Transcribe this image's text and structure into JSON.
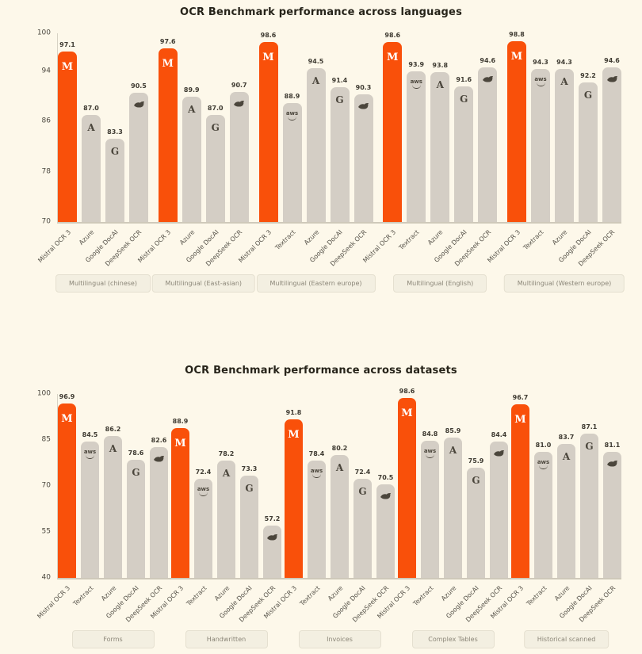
{
  "page": {
    "background_color": "#FDF8EA"
  },
  "colors": {
    "mistral_bar": "#F9500A",
    "default_bar": "#D4CEC5",
    "axis_line": "#cfc9ba",
    "value_label_text": "#3f3b32",
    "group_box_background": "#F3EFE1"
  },
  "icons": {
    "Mistral OCR 3": "mistral-logo-icon",
    "Textract": "aws-textract-icon",
    "Azure": "azure-icon",
    "Google DocAI": "google-docai-icon",
    "DeepSeek OCR": "deepseek-whale-icon"
  },
  "chart_data": [
    {
      "type": "bar",
      "title": "OCR Benchmark performance across languages",
      "xlabel": "",
      "ylabel": "",
      "ylim": [
        70,
        100
      ],
      "yticks": [
        100,
        94,
        86,
        78,
        70
      ],
      "grid": false,
      "legend_position": "none",
      "highlight_series": "Mistral OCR 3",
      "groups": [
        {
          "label": "Multilingual (chinese)",
          "bars": [
            {
              "vendor": "Mistral OCR 3",
              "value": 97.1,
              "label": "97.1"
            },
            {
              "vendor": "Azure",
              "value": 87.0,
              "label": "87.0"
            },
            {
              "vendor": "Google DocAI",
              "value": 83.3,
              "label": "83.3"
            },
            {
              "vendor": "DeepSeek OCR",
              "value": 90.5,
              "label": "90.5"
            }
          ]
        },
        {
          "label": "Multilingual (East-asian)",
          "bars": [
            {
              "vendor": "Mistral OCR 3",
              "value": 97.6,
              "label": "97.6"
            },
            {
              "vendor": "Azure",
              "value": 89.9,
              "label": "89.9"
            },
            {
              "vendor": "Google DocAI",
              "value": 87.0,
              "label": "87.0"
            },
            {
              "vendor": "DeepSeek OCR",
              "value": 90.7,
              "label": "90.7"
            }
          ]
        },
        {
          "label": "Multilingual (Eastern europe)",
          "bars": [
            {
              "vendor": "Mistral OCR 3",
              "value": 98.6,
              "label": "98.6"
            },
            {
              "vendor": "Textract",
              "value": 88.9,
              "label": "88.9"
            },
            {
              "vendor": "Azure",
              "value": 94.5,
              "label": "94.5"
            },
            {
              "vendor": "Google DocAI",
              "value": 91.4,
              "label": "91.4"
            },
            {
              "vendor": "DeepSeek OCR",
              "value": 90.3,
              "label": "90.3"
            }
          ]
        },
        {
          "label": "Multilingual (English)",
          "bars": [
            {
              "vendor": "Mistral OCR 3",
              "value": 98.6,
              "label": "98.6"
            },
            {
              "vendor": "Textract",
              "value": 93.9,
              "label": "93.9"
            },
            {
              "vendor": "Azure",
              "value": 93.8,
              "label": "93.8"
            },
            {
              "vendor": "Google DocAI",
              "value": 91.6,
              "label": "91.6"
            },
            {
              "vendor": "DeepSeek OCR",
              "value": 94.6,
              "label": "94.6"
            }
          ]
        },
        {
          "label": "Multilingual (Western europe)",
          "bars": [
            {
              "vendor": "Mistral OCR 3",
              "value": 98.8,
              "label": "98.8"
            },
            {
              "vendor": "Textract",
              "value": 94.3,
              "label": "94.3"
            },
            {
              "vendor": "Azure",
              "value": 94.3,
              "label": "94.3"
            },
            {
              "vendor": "Google DocAI",
              "value": 92.2,
              "label": "92.2"
            },
            {
              "vendor": "DeepSeek OCR",
              "value": 94.6,
              "label": "94.6"
            }
          ]
        }
      ]
    },
    {
      "type": "bar",
      "title": "OCR Benchmark performance across datasets",
      "xlabel": "",
      "ylabel": "",
      "ylim": [
        40,
        100
      ],
      "yticks": [
        100,
        85,
        70,
        55,
        40
      ],
      "grid": false,
      "legend_position": "none",
      "highlight_series": "Mistral OCR 3",
      "groups": [
        {
          "label": "Forms",
          "bars": [
            {
              "vendor": "Mistral OCR 3",
              "value": 96.9,
              "label": "96.9"
            },
            {
              "vendor": "Textract",
              "value": 84.5,
              "label": "84.5"
            },
            {
              "vendor": "Azure",
              "value": 86.2,
              "label": "86.2"
            },
            {
              "vendor": "Google DocAI",
              "value": 78.6,
              "label": "78.6"
            },
            {
              "vendor": "DeepSeek OCR",
              "value": 82.6,
              "label": "82.6"
            }
          ]
        },
        {
          "label": "Handwritten",
          "bars": [
            {
              "vendor": "Mistral OCR 3",
              "value": 88.9,
              "label": "88.9"
            },
            {
              "vendor": "Textract",
              "value": 72.4,
              "label": "72.4"
            },
            {
              "vendor": "Azure",
              "value": 78.2,
              "label": "78.2"
            },
            {
              "vendor": "Google DocAI",
              "value": 73.3,
              "label": "73.3"
            },
            {
              "vendor": "DeepSeek OCR",
              "value": 57.2,
              "label": "57.2"
            }
          ]
        },
        {
          "label": "Invoices",
          "bars": [
            {
              "vendor": "Mistral OCR 3",
              "value": 91.8,
              "label": "91.8"
            },
            {
              "vendor": "Textract",
              "value": 78.4,
              "label": "78.4"
            },
            {
              "vendor": "Azure",
              "value": 80.2,
              "label": "80.2"
            },
            {
              "vendor": "Google DocAI",
              "value": 72.4,
              "label": "72.4"
            },
            {
              "vendor": "DeepSeek OCR",
              "value": 70.5,
              "label": "70.5"
            }
          ]
        },
        {
          "label": "Complex Tables",
          "bars": [
            {
              "vendor": "Mistral OCR 3",
              "value": 98.6,
              "label": "98.6"
            },
            {
              "vendor": "Textract",
              "value": 84.8,
              "label": "84.8"
            },
            {
              "vendor": "Azure",
              "value": 85.9,
              "label": "85.9"
            },
            {
              "vendor": "Google DocAI",
              "value": 75.9,
              "label": "75.9"
            },
            {
              "vendor": "DeepSeek OCR",
              "value": 84.4,
              "label": "84.4"
            }
          ]
        },
        {
          "label": "Historical scanned",
          "bars": [
            {
              "vendor": "Mistral OCR 3",
              "value": 96.7,
              "label": "96.7"
            },
            {
              "vendor": "Textract",
              "value": 81.0,
              "label": "81.0"
            },
            {
              "vendor": "Azure",
              "value": 83.7,
              "label": "83.7"
            },
            {
              "vendor": "Google DocAI",
              "value": 87.1,
              "label": "87.1"
            },
            {
              "vendor": "DeepSeek OCR",
              "value": 81.1,
              "label": "81.1"
            }
          ]
        }
      ]
    }
  ]
}
